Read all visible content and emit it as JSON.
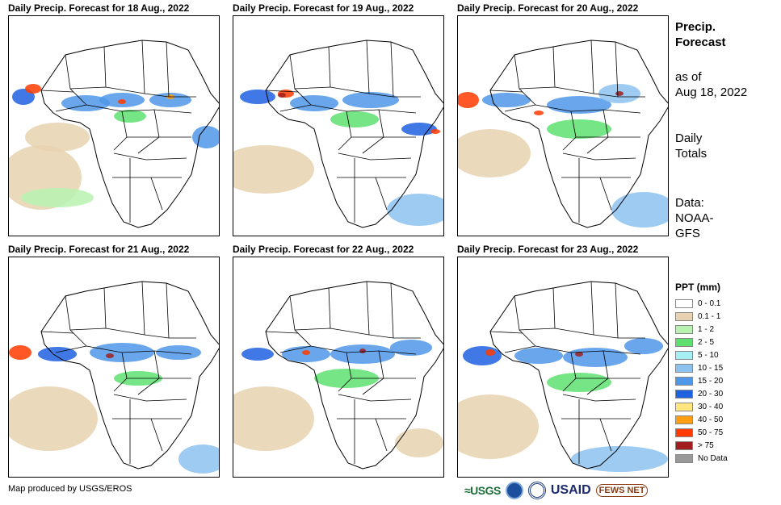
{
  "panels": [
    {
      "title": "Daily Precip. Forecast for 18 Aug., 2022"
    },
    {
      "title": "Daily Precip. Forecast for 19 Aug., 2022"
    },
    {
      "title": "Daily Precip. Forecast for 20 Aug., 2022"
    },
    {
      "title": "Daily Precip. Forecast for 21 Aug., 2022"
    },
    {
      "title": "Daily Precip. Forecast for 22 Aug., 2022"
    },
    {
      "title": "Daily Precip. Forecast for 23 Aug., 2022"
    }
  ],
  "sidebar": {
    "heading_line1": "Precip.",
    "heading_line2": "Forecast",
    "asof_line1": "as of",
    "asof_line2": "Aug 18, 2022",
    "totals_line1": "Daily",
    "totals_line2": "Totals",
    "data_line1": "Data:",
    "data_line2": "NOAA-",
    "data_line3": "GFS"
  },
  "legend": {
    "title": "PPT (mm)",
    "items": [
      {
        "label": "0 - 0.1",
        "color": "#ffffff"
      },
      {
        "label": "0.1 - 1",
        "color": "#e8d2b0"
      },
      {
        "label": "1 - 2",
        "color": "#b7f2b0"
      },
      {
        "label": "2 - 5",
        "color": "#5ee070"
      },
      {
        "label": "5 - 10",
        "color": "#a8eef5"
      },
      {
        "label": "10 - 15",
        "color": "#8cc2f0"
      },
      {
        "label": "15 - 20",
        "color": "#4f97e8"
      },
      {
        "label": "20 - 30",
        "color": "#1f62e0"
      },
      {
        "label": "30 - 40",
        "color": "#ffe680"
      },
      {
        "label": "40 - 50",
        "color": "#ff9e10"
      },
      {
        "label": "50 - 75",
        "color": "#ff3b00"
      },
      {
        "label": "> 75",
        "color": "#a01e1e"
      },
      {
        "label": "No Data",
        "color": "#999999"
      }
    ]
  },
  "footer": {
    "credit": "Map produced by USGS/EROS",
    "logos": {
      "usgs": "≈USGS",
      "usaid": "USAID",
      "fews": "FEWS NET"
    }
  }
}
